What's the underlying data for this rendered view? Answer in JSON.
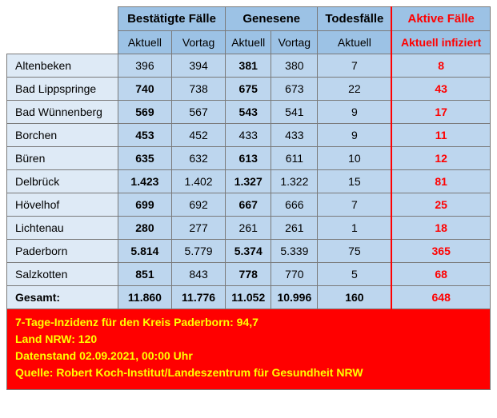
{
  "headers": {
    "group_confirmed": "Bestätigte Fälle",
    "group_recovered": "Genesene",
    "group_deaths": "Todesfälle",
    "group_active": "Aktive Fälle",
    "sub_current": "Aktuell",
    "sub_prev": "Vortag",
    "sub_active": "Aktuell infiziert"
  },
  "rows": [
    {
      "name": "Altenbeken",
      "confirmed_cur": "396",
      "confirmed_prev": "394",
      "recovered_cur": "381",
      "recovered_prev": "380",
      "deaths": "7",
      "active": "8",
      "bold_cc": false,
      "bold_rc": true
    },
    {
      "name": "Bad Lippspringe",
      "confirmed_cur": "740",
      "confirmed_prev": "738",
      "recovered_cur": "675",
      "recovered_prev": "673",
      "deaths": "22",
      "active": "43",
      "bold_cc": true,
      "bold_rc": true
    },
    {
      "name": "Bad Wünnenberg",
      "confirmed_cur": "569",
      "confirmed_prev": "567",
      "recovered_cur": "543",
      "recovered_prev": "541",
      "deaths": "9",
      "active": "17",
      "bold_cc": true,
      "bold_rc": true
    },
    {
      "name": "Borchen",
      "confirmed_cur": "453",
      "confirmed_prev": "452",
      "recovered_cur": "433",
      "recovered_prev": "433",
      "deaths": "9",
      "active": "11",
      "bold_cc": true,
      "bold_rc": false
    },
    {
      "name": "Büren",
      "confirmed_cur": "635",
      "confirmed_prev": "632",
      "recovered_cur": "613",
      "recovered_prev": "611",
      "deaths": "10",
      "active": "12",
      "bold_cc": true,
      "bold_rc": true
    },
    {
      "name": "Delbrück",
      "confirmed_cur": "1.423",
      "confirmed_prev": "1.402",
      "recovered_cur": "1.327",
      "recovered_prev": "1.322",
      "deaths": "15",
      "active": "81",
      "bold_cc": true,
      "bold_rc": true
    },
    {
      "name": "Hövelhof",
      "confirmed_cur": "699",
      "confirmed_prev": "692",
      "recovered_cur": "667",
      "recovered_prev": "666",
      "deaths": "7",
      "active": "25",
      "bold_cc": true,
      "bold_rc": true
    },
    {
      "name": "Lichtenau",
      "confirmed_cur": "280",
      "confirmed_prev": "277",
      "recovered_cur": "261",
      "recovered_prev": "261",
      "deaths": "1",
      "active": "18",
      "bold_cc": true,
      "bold_rc": false
    },
    {
      "name": "Paderborn",
      "confirmed_cur": "5.814",
      "confirmed_prev": "5.779",
      "recovered_cur": "5.374",
      "recovered_prev": "5.339",
      "deaths": "75",
      "active": "365",
      "bold_cc": true,
      "bold_rc": true
    },
    {
      "name": "Salzkotten",
      "confirmed_cur": "851",
      "confirmed_prev": "843",
      "recovered_cur": "778",
      "recovered_prev": "770",
      "deaths": "5",
      "active": "68",
      "bold_cc": true,
      "bold_rc": true
    }
  ],
  "total": {
    "name": "Gesamt:",
    "confirmed_cur": "11.860",
    "confirmed_prev": "11.776",
    "recovered_cur": "11.052",
    "recovered_prev": "10.996",
    "deaths": "160",
    "active": "648"
  },
  "footer": {
    "line1": "7-Tage-Inzidenz für den Kreis Paderborn: 94,7",
    "line2": "Land NRW: 120",
    "line3": "Datenstand 02.09.2021, 00:00 Uhr",
    "line4": "Quelle: Robert Koch-Institut/Landeszentrum für Gesundheit NRW"
  },
  "style": {
    "group_bg": "#9cc2e5",
    "cell_bg": "#bdd6ee",
    "label_bg": "#deeaf6",
    "active_color": "#ff0000",
    "footer_bg": "#ff0000",
    "footer_text": "#ffff00",
    "border_color": "#7a7a7a"
  }
}
